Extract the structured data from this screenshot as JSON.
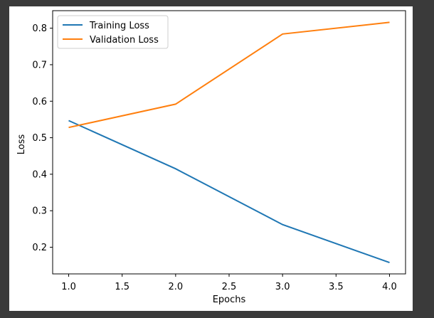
{
  "chart_data": {
    "type": "line",
    "x": [
      1.0,
      2.0,
      3.0,
      4.0
    ],
    "series": [
      {
        "name": "Training Loss",
        "values": [
          0.547,
          0.415,
          0.262,
          0.158
        ],
        "color": "#1f77b4"
      },
      {
        "name": "Validation Loss",
        "values": [
          0.528,
          0.592,
          0.784,
          0.816
        ],
        "color": "#ff7f0e"
      }
    ],
    "title": "",
    "xlabel": "Epochs",
    "ylabel": "Loss",
    "xlim": [
      0.85,
      4.15
    ],
    "ylim": [
      0.127,
      0.848
    ],
    "xticks": [
      1.0,
      1.5,
      2.0,
      2.5,
      3.0,
      3.5,
      4.0
    ],
    "xtick_labels": [
      "1.0",
      "1.5",
      "2.0",
      "2.5",
      "3.0",
      "3.5",
      "4.0"
    ],
    "yticks": [
      0.2,
      0.3,
      0.4,
      0.5,
      0.6,
      0.7,
      0.8
    ],
    "ytick_labels": [
      "0.2",
      "0.3",
      "0.4",
      "0.5",
      "0.6",
      "0.7",
      "0.8"
    ],
    "grid": false,
    "legend_position": "upper left"
  }
}
